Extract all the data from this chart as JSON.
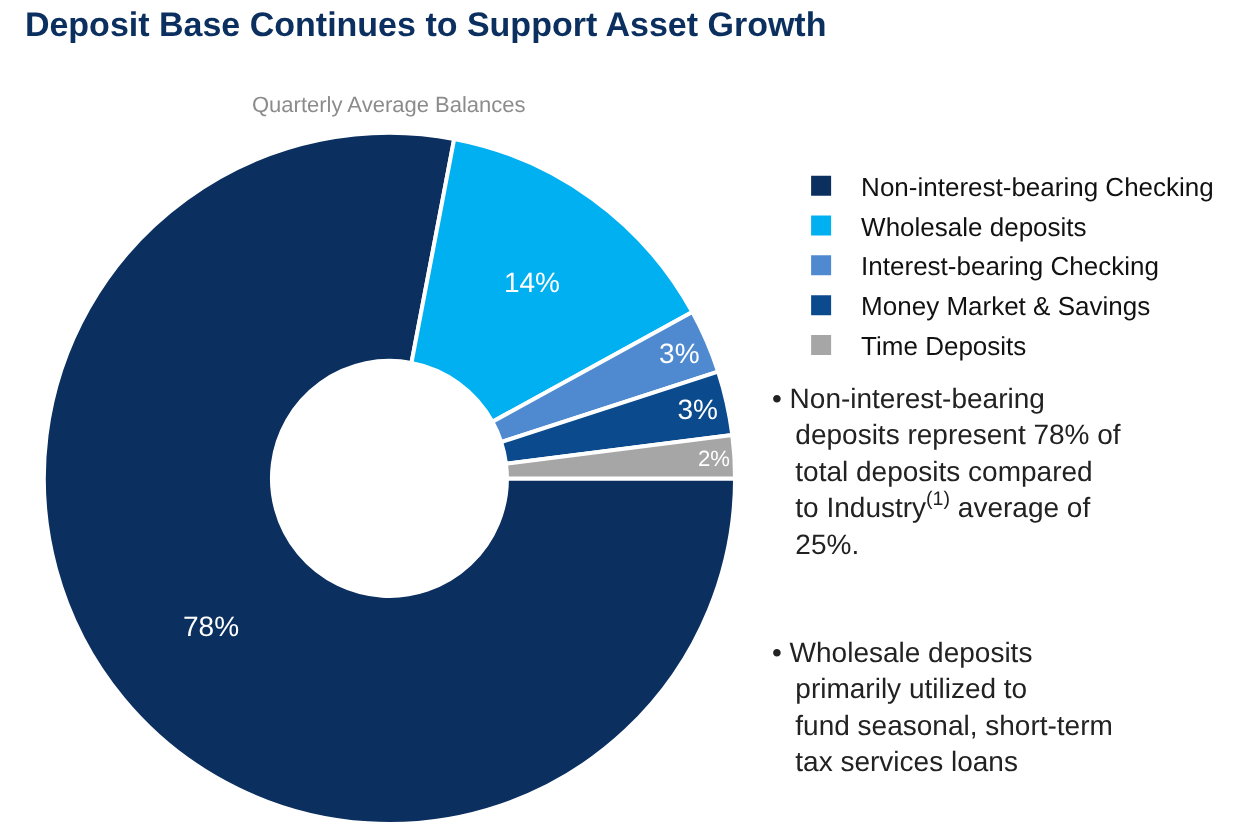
{
  "chart_data": {
    "type": "donut",
    "title": "Deposit Base Continues to Support Asset Growth",
    "subtitle": "Quarterly Average Balances",
    "categories": [
      "Non-interest-bearing Checking",
      "Wholesale deposits",
      "Interest-bearing Checking",
      "Money Market & Savings",
      "Time Deposits"
    ],
    "values": [
      78,
      14,
      3,
      3,
      2
    ],
    "colors": [
      "#0b2f5f",
      "#00b0f0",
      "#4f8ad0",
      "#0b4a8c",
      "#a6a6a6"
    ],
    "value_labels": [
      "78%",
      "14%",
      "3%",
      "3%",
      "2%"
    ],
    "legend": "top right",
    "annotations": [
      "• Non-interest-bearing deposits represent 78% of total deposits compared to Industry$^{(1)}$ average of 25%.",
      "• Wholesale deposits primarily utilized to fund seasonal, short-term tax services loans"
    ]
  }
}
